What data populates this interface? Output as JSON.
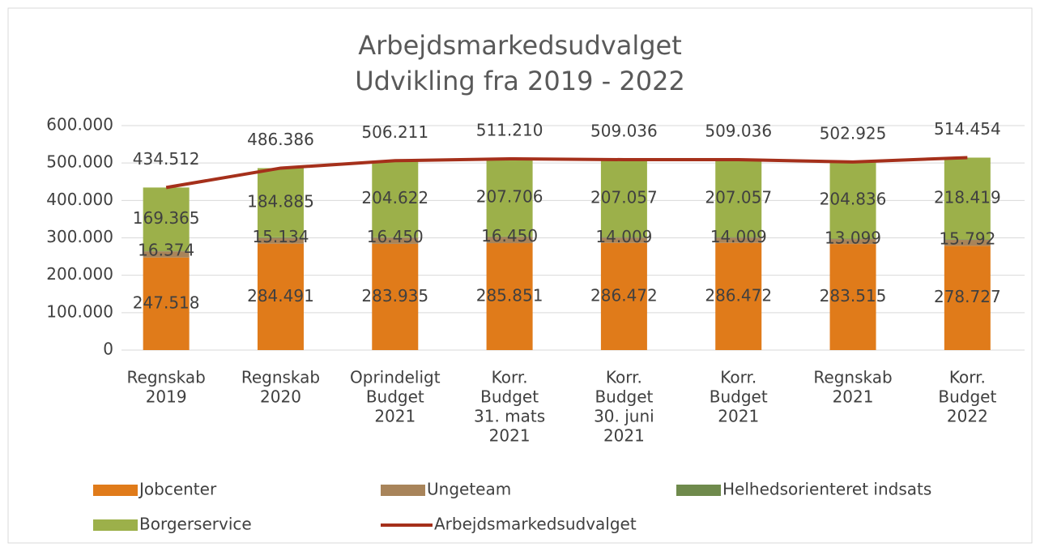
{
  "chart_data": {
    "type": "stacked-bar-line",
    "title": [
      "Arbejdsmarkedsudvalget",
      "Udvikling fra 2019 - 2022"
    ],
    "categories": [
      [
        "Regnskab",
        "2019"
      ],
      [
        "Regnskab",
        "2020"
      ],
      [
        "Oprindeligt",
        "Budget",
        "2021"
      ],
      [
        "Korr.",
        "Budget",
        "31. mats",
        "2021"
      ],
      [
        "Korr.",
        "Budget",
        "30. juni",
        "2021"
      ],
      [
        "Korr.",
        "Budget",
        "2021"
      ],
      [
        "Regnskab",
        "2021"
      ],
      [
        "Korr.",
        "Budget",
        "2022"
      ]
    ],
    "series": [
      {
        "name": "Jobcenter",
        "color": "#E07B1A",
        "values": [
          247518,
          284491,
          283935,
          285851,
          286472,
          286472,
          283515,
          278727
        ],
        "value_labels": [
          "247.518",
          "284.491",
          "283.935",
          "285.851",
          "286.472",
          "286.472",
          "283.515",
          "278.727"
        ]
      },
      {
        "name": "Ungeteam",
        "color": "#A8845A",
        "values": [
          16374,
          15134,
          16450,
          16450,
          14009,
          14009,
          13099,
          15792
        ],
        "value_labels": [
          "16.374",
          "15.134",
          "16.450",
          "16.450",
          "14.009",
          "14.009",
          "13.099",
          "15.792"
        ]
      },
      {
        "name": "Helhedsorienteret indsats",
        "color": "#6F8A4C",
        "values": [
          1255,
          1876,
          1204,
          1203,
          1498,
          1498,
          1475,
          1516
        ]
      },
      {
        "name": "Borgerservice",
        "color": "#9CB04A",
        "values": [
          169365,
          184885,
          204622,
          207706,
          207057,
          207057,
          204836,
          218419
        ],
        "value_labels": [
          "169.365",
          "184.885",
          "204.622",
          "207.706",
          "207.057",
          "207.057",
          "204.836",
          "218.419"
        ]
      },
      {
        "name": "Arbejdsmarkedsudvalget",
        "color": "#A5301B",
        "type": "line",
        "values": [
          434512,
          486386,
          506211,
          511210,
          509036,
          509036,
          502925,
          514454
        ],
        "value_labels": [
          "434.512",
          "486.386",
          "506.211",
          "511.210",
          "509.036",
          "509.036",
          "502.925",
          "514.454"
        ]
      }
    ],
    "ylim": [
      0,
      600000
    ],
    "yticks": [
      0,
      {
        "value": 100000,
        "label": "100.000"
      },
      {
        "value": 200000,
        "label": "200.000"
      },
      {
        "value": 300000,
        "label": "300.000"
      },
      {
        "value": 400000,
        "label": "400.000"
      },
      {
        "value": 500000,
        "label": "500.000"
      },
      {
        "value": 600000,
        "label": "600.000"
      }
    ],
    "grid": true,
    "legend": "bottom"
  }
}
